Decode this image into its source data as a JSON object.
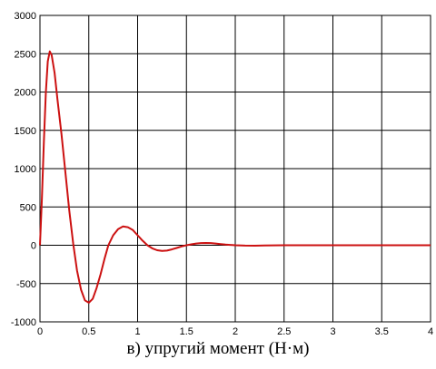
{
  "chart_data": {
    "type": "line",
    "title": "",
    "caption": "в) упругий момент (Н·м)",
    "xlabel": "",
    "ylabel": "",
    "xlim": [
      0,
      4
    ],
    "ylim": [
      -1000,
      3000
    ],
    "xticks": [
      "0",
      "0.5",
      "1",
      "1.5",
      "2",
      "2.5",
      "3",
      "3.5",
      "4"
    ],
    "yticks": [
      "3000",
      "2500",
      "2000",
      "1500",
      "1000",
      "500",
      "0",
      "-500",
      "-1000"
    ],
    "grid": true,
    "series": [
      {
        "color": "#cc1111",
        "x": [
          0,
          0.02,
          0.04,
          0.06,
          0.08,
          0.1,
          0.12,
          0.15,
          0.18,
          0.22,
          0.26,
          0.3,
          0.34,
          0.38,
          0.42,
          0.46,
          0.5,
          0.54,
          0.58,
          0.62,
          0.66,
          0.7,
          0.75,
          0.8,
          0.85,
          0.9,
          0.95,
          1.0,
          1.05,
          1.1,
          1.15,
          1.2,
          1.25,
          1.3,
          1.35,
          1.4,
          1.45,
          1.5,
          1.55,
          1.6,
          1.65,
          1.7,
          1.75,
          1.8,
          1.85,
          1.9,
          2.0,
          2.1,
          2.2,
          2.3,
          2.5,
          3.0,
          3.5,
          4.0
        ],
        "values": [
          0,
          600,
          1350,
          2000,
          2400,
          2530,
          2480,
          2250,
          1900,
          1450,
          950,
          450,
          20,
          -330,
          -580,
          -720,
          -750,
          -700,
          -560,
          -380,
          -180,
          0,
          130,
          210,
          245,
          235,
          200,
          130,
          60,
          0,
          -40,
          -65,
          -75,
          -70,
          -55,
          -35,
          -15,
          0,
          12,
          22,
          28,
          30,
          28,
          22,
          15,
          8,
          0,
          -5,
          -6,
          -3,
          0,
          0,
          0,
          0
        ]
      }
    ]
  }
}
